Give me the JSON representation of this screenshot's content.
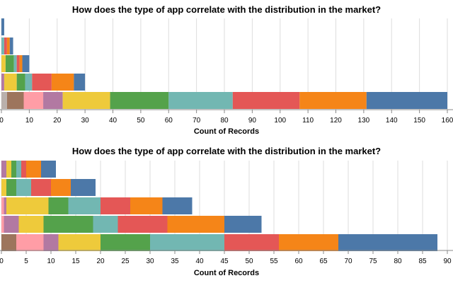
{
  "colors": {
    "palette": [
      "#4c78a8",
      "#f58518",
      "#e45756",
      "#72b7b2",
      "#54a24b",
      "#eeca3b",
      "#b279a2",
      "#ff9da6",
      "#9d755d",
      "#bab0ac"
    ],
    "grid": "#dddddd",
    "axis": "#888888"
  },
  "chart_data": [
    {
      "type": "bar",
      "orientation": "horizontal",
      "stacked": true,
      "title": "How does the type of app correlate with the distribution in the market?",
      "xlabel": "Count of Records",
      "ylabel": "",
      "xlim": [
        0,
        160
      ],
      "x_ticks": [
        0,
        10,
        20,
        30,
        40,
        50,
        60,
        70,
        80,
        90,
        100,
        110,
        120,
        130,
        140,
        150,
        160
      ],
      "grid": true,
      "legend": "none",
      "rows": [
        {
          "segments": [
            1
          ]
        },
        {
          "segments": [
            1.2,
            1.0,
            1.0,
            1.0
          ]
        },
        {
          "segments": [
            2.5,
            1.0,
            1.0,
            1.0,
            3.0,
            1.5
          ]
        },
        {
          "segments": [
            4.0,
            8.0,
            7.0,
            2.5,
            3.0,
            4.5,
            1.0
          ]
        },
        {
          "segments": [
            29.0,
            24.0,
            24.0,
            23.0,
            21.0,
            17.0,
            7.0,
            7.0,
            6.0,
            2.0
          ]
        }
      ]
    },
    {
      "type": "bar",
      "orientation": "horizontal",
      "stacked": true,
      "title": "How does the type of app correlate with the distribution in the market?",
      "xlabel": "Count of Records",
      "ylabel": "",
      "xlim": [
        0,
        90
      ],
      "x_ticks": [
        0,
        5,
        10,
        15,
        20,
        25,
        30,
        35,
        40,
        45,
        50,
        55,
        60,
        65,
        70,
        75,
        80,
        85,
        90
      ],
      "grid": true,
      "legend": "none",
      "rows": [
        {
          "segments": [
            3.0,
            3.0,
            1.0,
            1.0,
            1.0,
            1.0,
            1.0
          ]
        },
        {
          "segments": [
            5.0,
            4.0,
            4.0,
            3.0,
            2.0,
            1.0
          ]
        },
        {
          "segments": [
            6.0,
            6.5,
            6.0,
            6.5,
            4.0,
            8.5,
            0.5,
            0.5
          ]
        },
        {
          "segments": [
            7.5,
            11.5,
            10.0,
            5.0,
            10.0,
            5.0,
            3.0,
            0.5
          ]
        },
        {
          "segments": [
            20.0,
            12.0,
            11.0,
            15.0,
            10.0,
            8.5,
            3.0,
            5.5,
            3.0,
            0
          ]
        }
      ]
    }
  ]
}
